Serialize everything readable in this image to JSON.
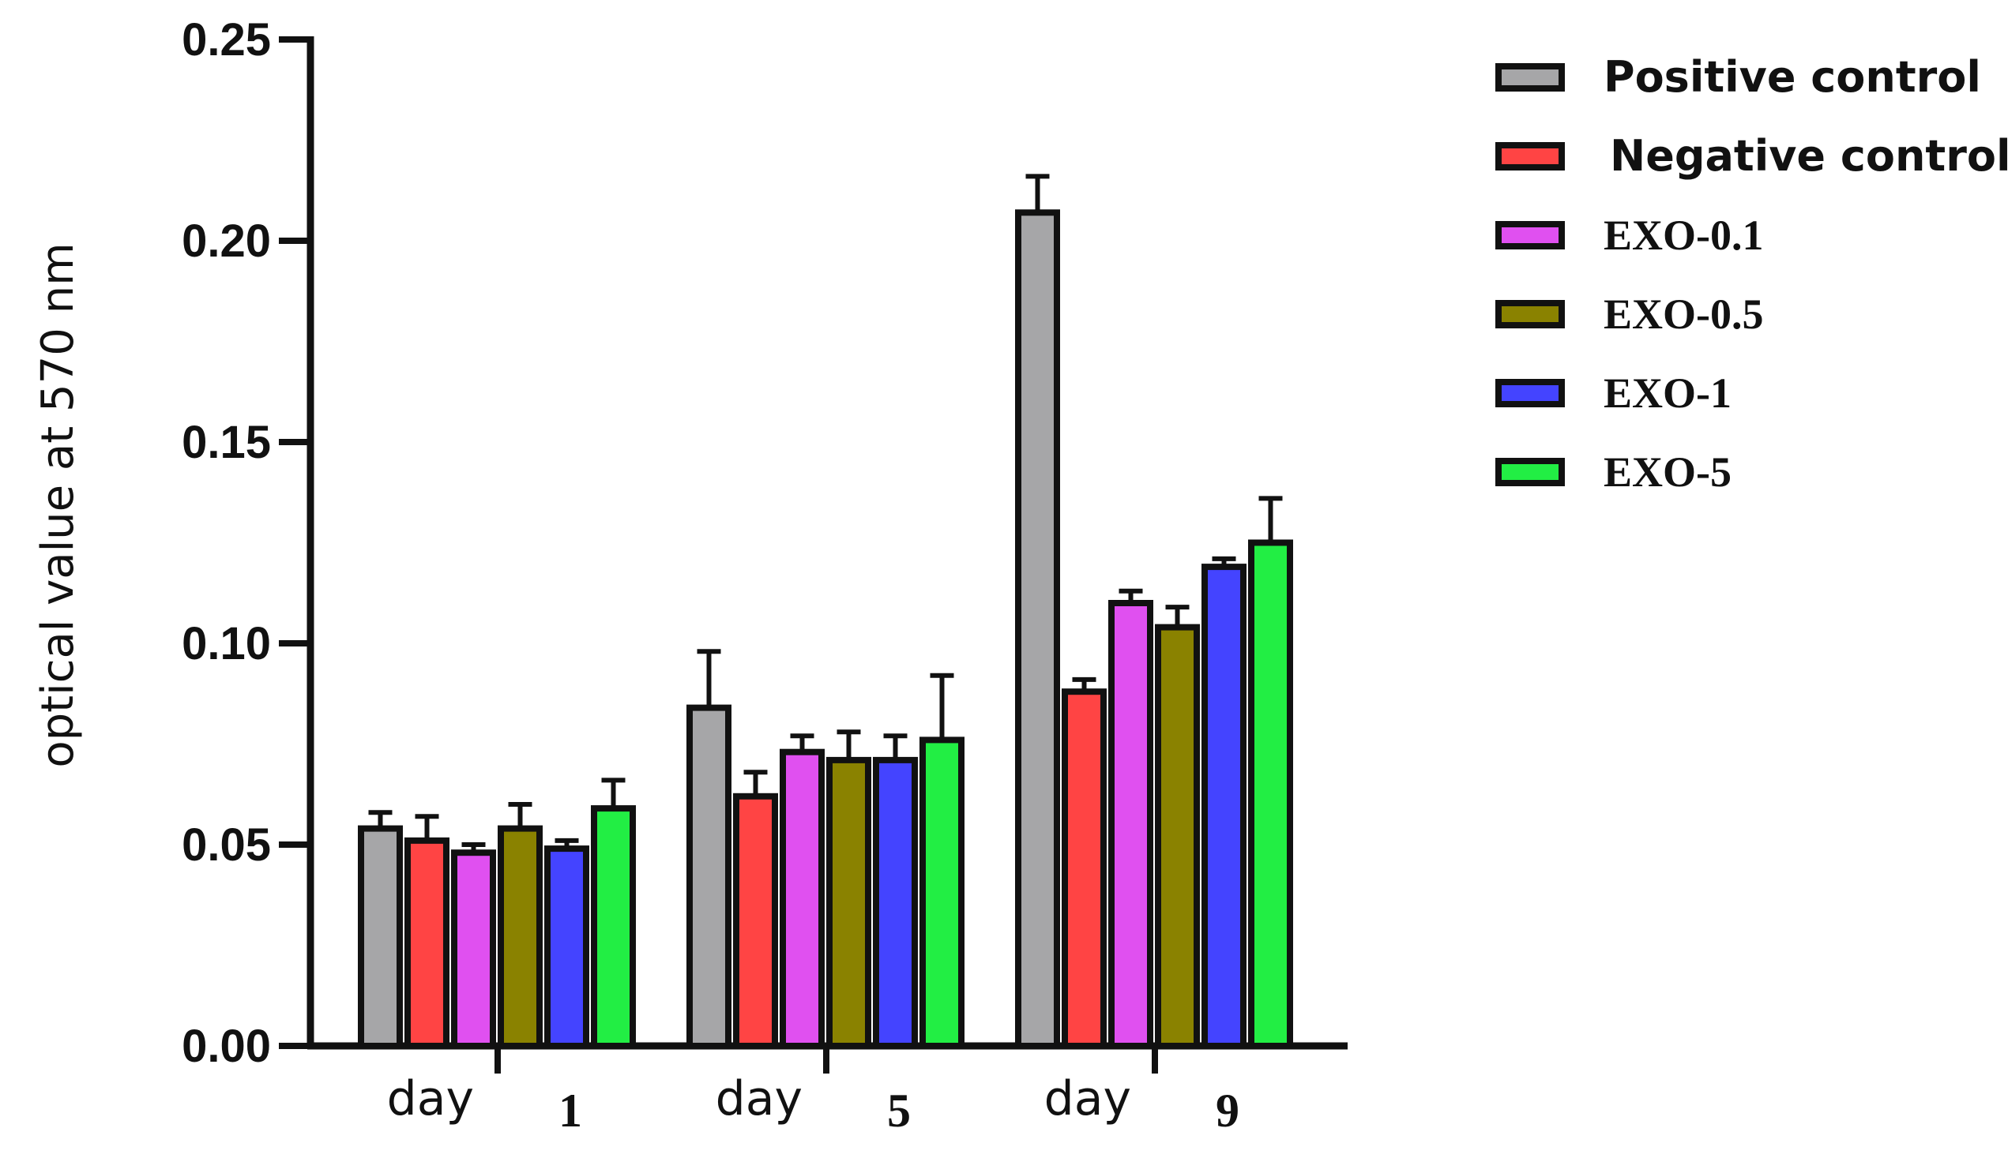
{
  "chart_data": {
    "type": "bar",
    "title": "",
    "xlabel": "",
    "ylabel": "optical value at 570 nm",
    "ylim": [
      0,
      0.25
    ],
    "yticks": [
      "0.00",
      "0.05",
      "0.10",
      "0.15",
      "0.20",
      "0.25"
    ],
    "grid": false,
    "legend_position": "top-right",
    "categories": [
      {
        "word": "day",
        "num": "1"
      },
      {
        "word": "day",
        "num": "5"
      },
      {
        "word": "day",
        "num": "9"
      }
    ],
    "series": [
      {
        "name": "Positive control",
        "color": "#a6a6a8",
        "values": [
          0.054,
          0.084,
          0.207
        ],
        "errors": [
          0.004,
          0.014,
          0.009
        ]
      },
      {
        "name": "Negative control",
        "color": "#ff4444",
        "values": [
          0.051,
          0.062,
          0.088
        ],
        "errors": [
          0.006,
          0.006,
          0.003
        ]
      },
      {
        "name": "EXO-0.1",
        "color": "#e050f0",
        "values": [
          0.048,
          0.073,
          0.11
        ],
        "errors": [
          0.002,
          0.004,
          0.003
        ]
      },
      {
        "name": "EXO-0.5",
        "color": "#8a8200",
        "values": [
          0.054,
          0.071,
          0.104
        ],
        "errors": [
          0.006,
          0.007,
          0.005
        ]
      },
      {
        "name": "EXO-1",
        "color": "#4444ff",
        "values": [
          0.049,
          0.071,
          0.119
        ],
        "errors": [
          0.002,
          0.006,
          0.002
        ]
      },
      {
        "name": "EXO-5",
        "color": "#22ee44",
        "values": [
          0.059,
          0.076,
          0.125
        ],
        "errors": [
          0.007,
          0.016,
          0.011
        ]
      }
    ]
  }
}
